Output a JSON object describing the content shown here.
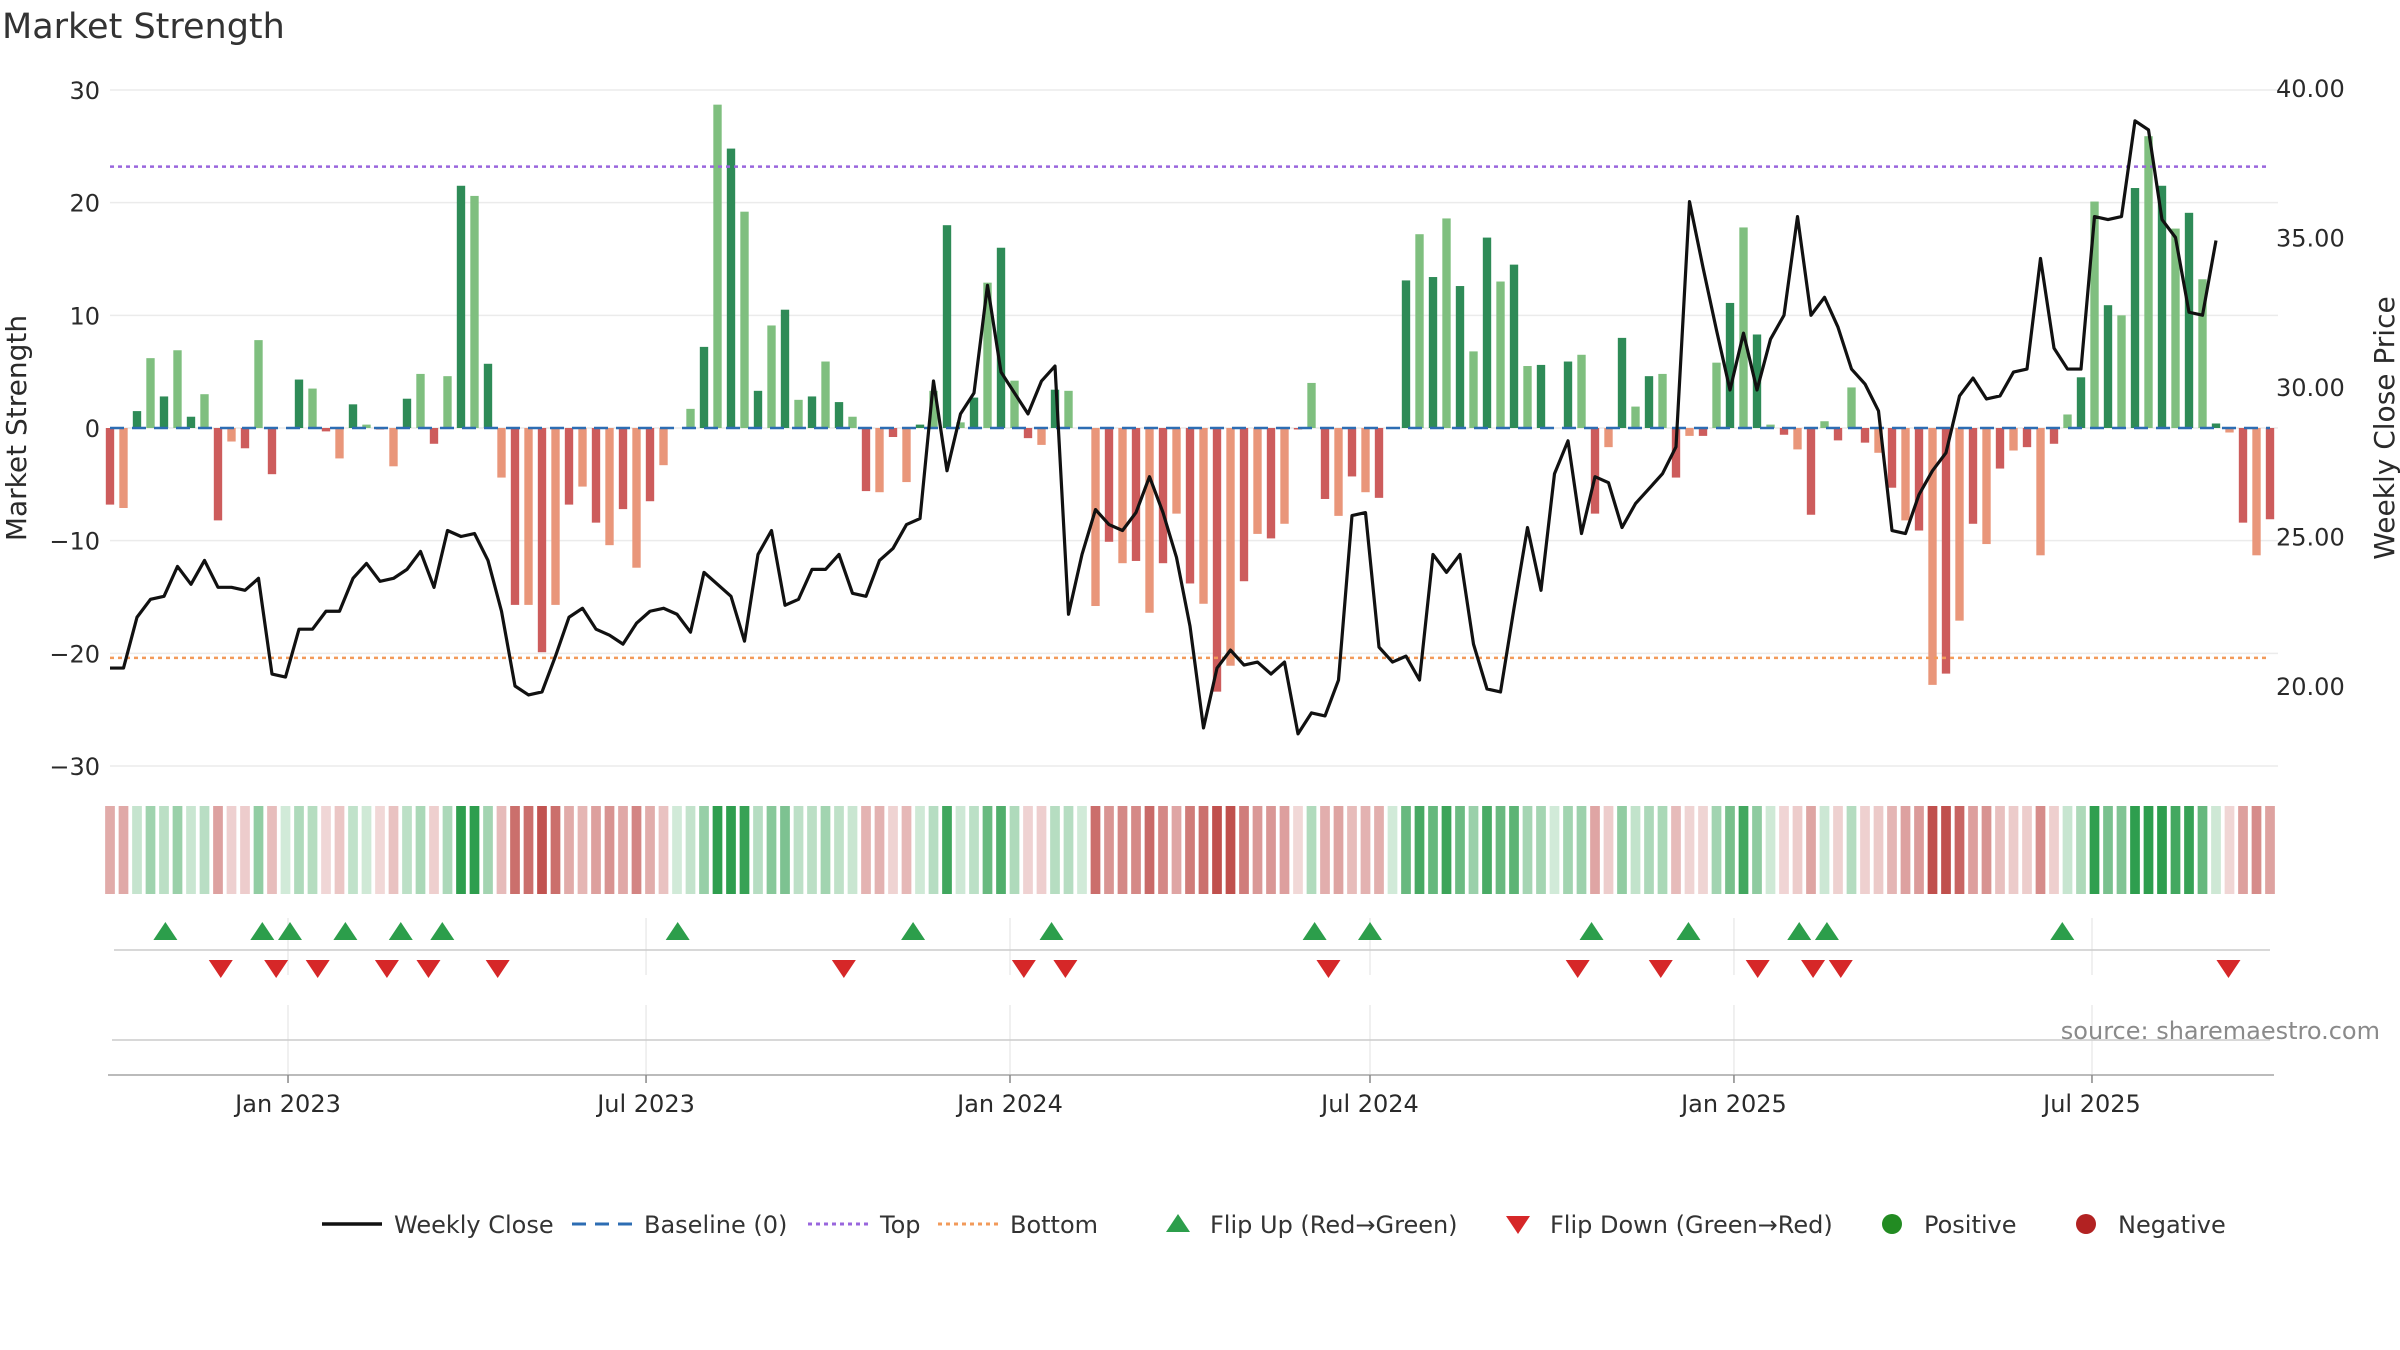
{
  "chart_data": {
    "type": "bar",
    "title": "Market Strength",
    "ylabel_left": "Market Strength",
    "ylabel_right": "Weekly Close Price",
    "source": "source: sharemaestro.com",
    "ylim_left": [
      -30,
      30
    ],
    "left_ticks": [
      30,
      20,
      10,
      0,
      -10,
      -20,
      -30
    ],
    "left_tick_labels": [
      "30",
      "20",
      "10",
      "0",
      "−10",
      "−20",
      "−30"
    ],
    "ylim_right": [
      17.5,
      40
    ],
    "right_ticks": [
      40,
      35,
      30,
      25,
      20
    ],
    "right_tick_labels": [
      "40.00",
      "35.00",
      "30.00",
      "25.00",
      "20.00"
    ],
    "x_start": "2022-10-03",
    "x_end": "2025-09-29",
    "x_ticks": [
      {
        "date": "2023-01-01",
        "label": "Jan 2023"
      },
      {
        "date": "2023-07-01",
        "label": "Jul 2023"
      },
      {
        "date": "2024-01-01",
        "label": "Jan 2024"
      },
      {
        "date": "2024-07-01",
        "label": "Jul 2024"
      },
      {
        "date": "2025-01-01",
        "label": "Jan 2025"
      },
      {
        "date": "2025-07-01",
        "label": "Jul 2025"
      }
    ],
    "top_level": 23.2,
    "bottom_level": -20.4,
    "baseline": 0,
    "strength_values": [
      -6.8,
      -7.1,
      1.5,
      6.2,
      2.8,
      6.9,
      1.0,
      3.0,
      -8.2,
      -1.2,
      -1.8,
      7.8,
      -4.1,
      0.0,
      4.3,
      3.5,
      -0.3,
      -2.7,
      2.1,
      0.3,
      -0.1,
      -3.4,
      2.6,
      4.8,
      -1.4,
      4.6,
      21.5,
      20.6,
      5.7,
      -4.4,
      -15.7,
      -15.7,
      -19.9,
      -15.7,
      -6.8,
      -5.2,
      -8.4,
      -10.4,
      -7.2,
      -12.4,
      -6.5,
      -3.3,
      0.0,
      1.7,
      7.2,
      28.7,
      24.8,
      19.2,
      3.3,
      9.1,
      10.5,
      2.5,
      2.8,
      5.9,
      2.3,
      1.0,
      -5.6,
      -5.7,
      -0.8,
      -4.8,
      0.3,
      3.3,
      18.0,
      0.5,
      2.7,
      12.9,
      16.0,
      4.2,
      -0.9,
      -1.5,
      3.4,
      3.3,
      0.0,
      -15.8,
      -10.1,
      -12.0,
      -11.8,
      -16.4,
      -12.0,
      -7.6,
      -13.8,
      -15.6,
      -23.4,
      -21.1,
      -13.6,
      -9.4,
      -9.8,
      -8.5,
      -0.1,
      4.0,
      -6.3,
      -7.8,
      -4.3,
      -5.7,
      -6.2,
      0.0,
      13.1,
      17.2,
      13.4,
      18.6,
      12.6,
      6.8,
      16.9,
      13.0,
      14.5,
      5.5,
      5.6,
      0.0,
      5.9,
      6.5,
      -7.6,
      -1.7,
      8.0,
      1.9,
      4.6,
      4.8,
      -4.4,
      -0.7,
      -0.7,
      5.8,
      11.1,
      17.8,
      8.3,
      0.3,
      -0.6,
      -1.9,
      -7.7,
      0.6,
      -1.1,
      3.6,
      -1.3,
      -2.2,
      -5.3,
      -8.2,
      -9.1,
      -22.8,
      -21.8,
      -17.1,
      -8.5,
      -10.3,
      -3.6,
      -2.0,
      -1.7,
      -11.3,
      -1.4,
      1.2,
      4.5,
      20.1,
      10.9,
      10.0,
      21.3,
      25.9,
      21.5,
      17.7,
      19.1,
      13.2,
      0.4,
      -0.4,
      -8.4,
      -11.3,
      -8.1
    ],
    "close_values": [
      20.6,
      20.6,
      22.3,
      22.9,
      23.0,
      24.0,
      23.4,
      24.2,
      23.3,
      23.3,
      23.2,
      23.6,
      20.4,
      20.3,
      21.9,
      21.9,
      22.5,
      22.5,
      23.6,
      24.1,
      23.5,
      23.6,
      23.9,
      24.5,
      23.3,
      25.2,
      25.0,
      25.1,
      24.2,
      22.5,
      20.0,
      19.7,
      19.8,
      21.0,
      22.3,
      22.6,
      21.9,
      21.7,
      21.4,
      22.1,
      22.5,
      22.6,
      22.4,
      21.8,
      23.8,
      23.4,
      23.0,
      21.5,
      24.4,
      25.2,
      22.7,
      22.9,
      23.9,
      23.9,
      24.4,
      23.1,
      23.0,
      24.2,
      24.6,
      25.4,
      25.6,
      30.2,
      27.2,
      29.1,
      29.8,
      33.4,
      30.5,
      29.8,
      29.1,
      30.2,
      30.7,
      22.4,
      24.4,
      25.9,
      25.4,
      25.2,
      25.8,
      27.0,
      25.8,
      24.3,
      22.0,
      18.6,
      20.6,
      21.2,
      20.7,
      20.8,
      20.4,
      20.8,
      18.4,
      19.1,
      19.0,
      20.2,
      25.7,
      25.8,
      21.3,
      20.8,
      21.0,
      20.2,
      24.4,
      23.8,
      24.4,
      21.4,
      19.9,
      19.8,
      22.6,
      25.3,
      23.2,
      27.1,
      28.2,
      25.1,
      27.0,
      26.8,
      25.3,
      26.1,
      26.6,
      27.1,
      28.0,
      36.2,
      34.0,
      31.9,
      29.9,
      31.8,
      29.9,
      31.6,
      32.4,
      35.7,
      32.4,
      33.0,
      32.0,
      30.6,
      30.1,
      29.2,
      25.2,
      25.1,
      26.4,
      27.2,
      27.8,
      29.7,
      30.3,
      29.6,
      29.7,
      30.5,
      30.6,
      34.3,
      31.3,
      30.6,
      30.6,
      35.7,
      35.6,
      35.7,
      38.9,
      38.6,
      35.6,
      35.0,
      32.5,
      32.4,
      34.9
    ],
    "flip_up_dates": [
      "2022-10-31",
      "2022-12-19",
      "2023-01-02",
      "2023-01-30",
      "2023-02-27",
      "2023-03-20",
      "2023-07-17",
      "2023-11-13",
      "2024-01-22",
      "2024-06-03",
      "2024-07-01",
      "2024-10-21",
      "2024-12-09",
      "2025-02-03",
      "2025-02-17",
      "2025-06-16"
    ],
    "flip_down_dates": [
      "2022-11-28",
      "2022-12-26",
      "2023-01-16",
      "2023-02-20",
      "2023-03-13",
      "2023-04-17",
      "2023-10-09",
      "2024-01-08",
      "2024-01-29",
      "2024-06-10",
      "2024-10-14",
      "2024-11-25",
      "2025-01-13",
      "2025-02-10",
      "2025-02-24",
      "2025-09-08"
    ],
    "legend": [
      {
        "label": "Weekly Close",
        "kind": "line-solid",
        "color": "#111111"
      },
      {
        "label": "Baseline (0)",
        "kind": "line-dash",
        "color": "#2d6db3"
      },
      {
        "label": "Top",
        "kind": "line-dot",
        "color": "#9966dd"
      },
      {
        "label": "Bottom",
        "kind": "line-dot",
        "color": "#f29a5a"
      },
      {
        "label": "Flip Up (Red→Green)",
        "kind": "tri-up",
        "color": "#2c9e4b"
      },
      {
        "label": "Flip Down (Green→Red)",
        "kind": "tri-down",
        "color": "#d62728"
      },
      {
        "label": "Positive",
        "kind": "dot",
        "color": "#228b22"
      },
      {
        "label": "Negative",
        "kind": "dot",
        "color": "#b22222"
      }
    ],
    "colors": {
      "pos_dark": "#2e8b57",
      "pos_light": "#7fbf7f",
      "neg_dark": "#cd5c5c",
      "neg_light": "#e9967a",
      "line": "#111111",
      "baseline": "#2d6db3",
      "top": "#9966dd",
      "bottom": "#f29a5a",
      "tri_up": "#2c9e4b",
      "tri_down": "#d62728",
      "grid": "#ebebeb"
    }
  }
}
